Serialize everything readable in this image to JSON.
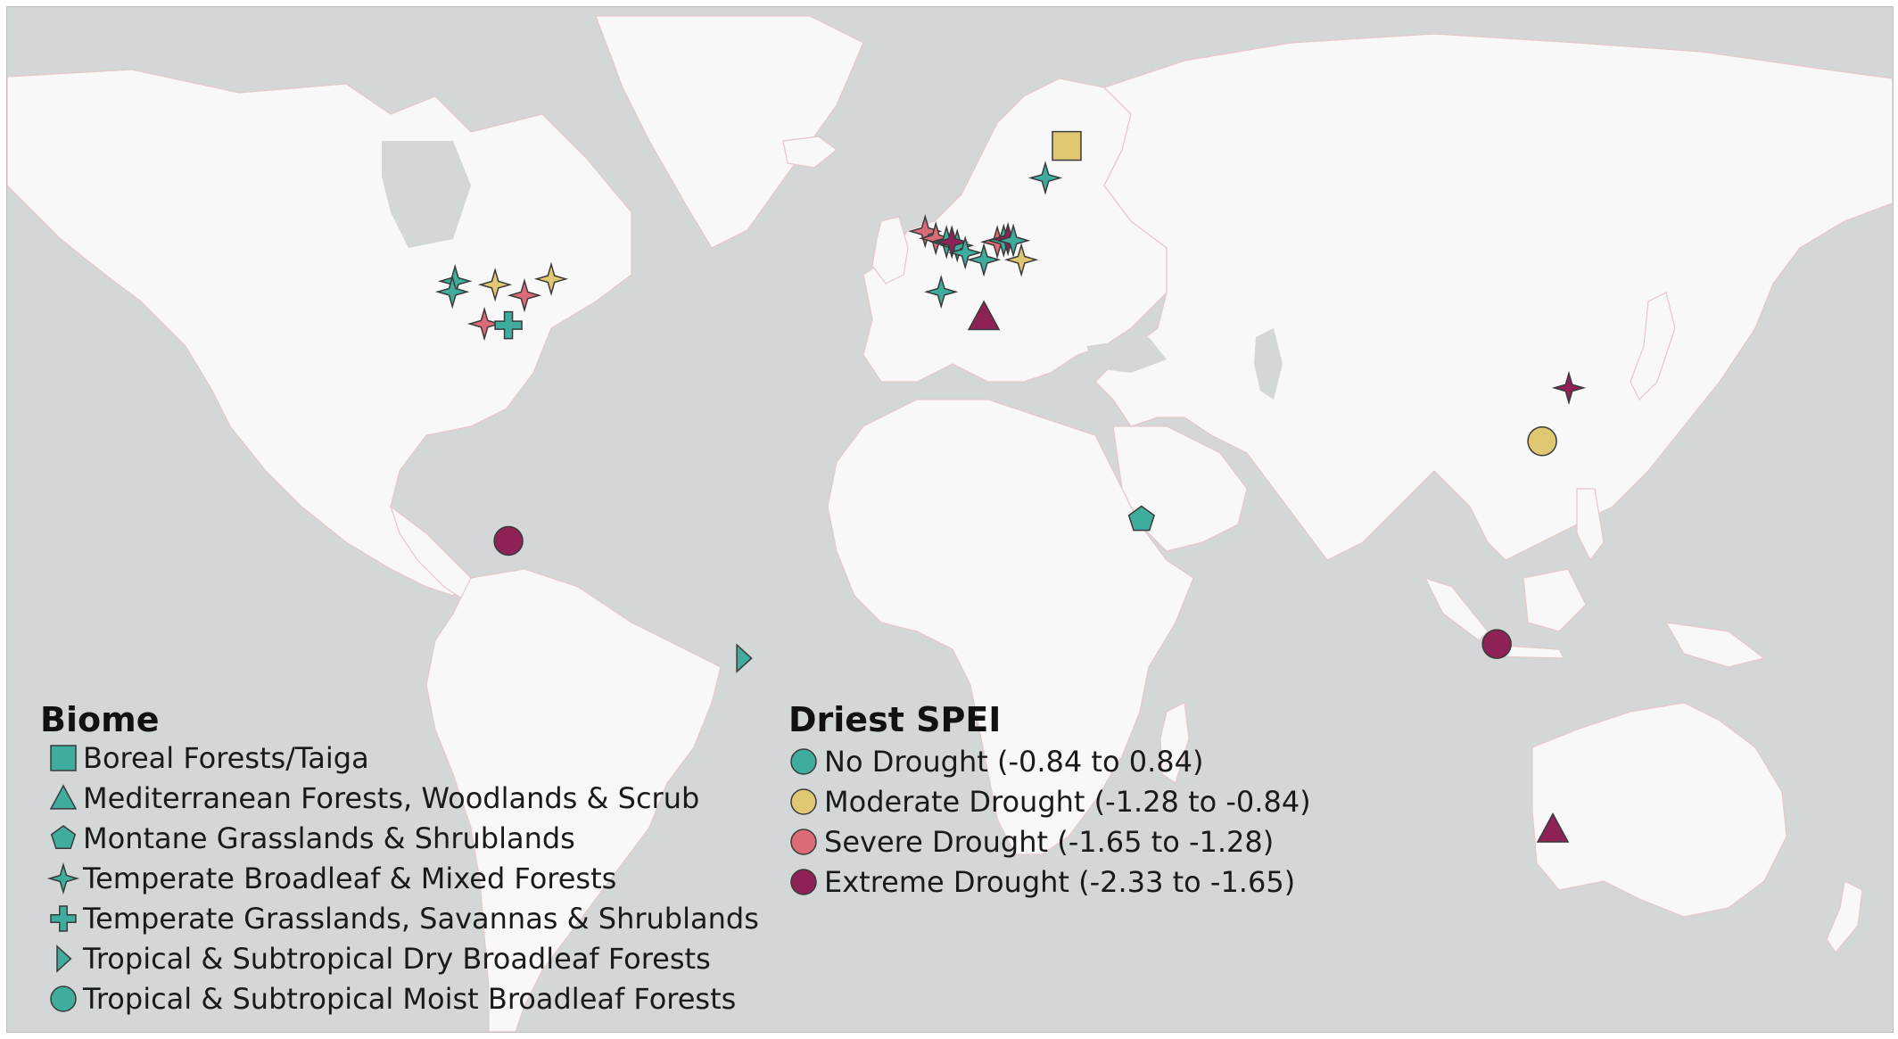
{
  "colors": {
    "ocean": "#d3d7d8",
    "land": "#f8f8f8",
    "no_drought": "#3fad9d",
    "moderate_drought": "#e0c873",
    "severe_drought": "#db6b78",
    "extreme_drought": "#8e2257"
  },
  "biome_legend": {
    "title": "Biome",
    "items": [
      {
        "shape": "square",
        "label": "Boreal Forests/Taiga"
      },
      {
        "shape": "triangle",
        "label": "Mediterranean Forests, Woodlands & Scrub"
      },
      {
        "shape": "pentagon",
        "label": "Montane Grasslands & Shrublands"
      },
      {
        "shape": "star",
        "label": "Temperate Broadleaf & Mixed Forests"
      },
      {
        "shape": "cross",
        "label": "Temperate Grasslands, Savannas & Shrublands"
      },
      {
        "shape": "half-triangle",
        "label": "Tropical & Subtropical Dry Broadleaf Forests"
      },
      {
        "shape": "circle",
        "label": "Tropical & Subtropical Moist Broadleaf Forests"
      }
    ]
  },
  "spei_legend": {
    "title": "Driest SPEI",
    "items": [
      {
        "category": "no_drought",
        "label": "No Drought (-0.84 to 0.84)"
      },
      {
        "category": "moderate_drought",
        "label": "Moderate Drought (-1.28 to -0.84)"
      },
      {
        "category": "severe_drought",
        "label": "Severe Drought (-1.65 to -1.28)"
      },
      {
        "category": "extreme_drought",
        "label": "Extreme Drought (-2.33 to -1.65)"
      }
    ]
  },
  "sites": [
    {
      "lon": 25.0,
      "lat": 64.5,
      "biome": "square",
      "spei": "moderate_drought"
    },
    {
      "lon": 21.0,
      "lat": 60.0,
      "biome": "star",
      "spei": "no_drought"
    },
    {
      "lon": -89.5,
      "lat": 45.5,
      "biome": "star",
      "spei": "no_drought"
    },
    {
      "lon": -90.0,
      "lat": 44.0,
      "biome": "star",
      "spei": "no_drought"
    },
    {
      "lon": -82.0,
      "lat": 45.0,
      "biome": "star",
      "spei": "moderate_drought"
    },
    {
      "lon": -71.5,
      "lat": 45.8,
      "biome": "star",
      "spei": "moderate_drought"
    },
    {
      "lon": -76.5,
      "lat": 43.5,
      "biome": "star",
      "spei": "severe_drought"
    },
    {
      "lon": -84.0,
      "lat": 39.5,
      "biome": "star",
      "spei": "severe_drought"
    },
    {
      "lon": -79.5,
      "lat": 39.3,
      "biome": "cross",
      "spei": "no_drought"
    },
    {
      "lon": -1.5,
      "lat": 52.5,
      "biome": "star",
      "spei": "severe_drought"
    },
    {
      "lon": 0.5,
      "lat": 51.5,
      "biome": "star",
      "spei": "severe_drought"
    },
    {
      "lon": 2.5,
      "lat": 51.0,
      "biome": "star",
      "spei": "no_drought"
    },
    {
      "lon": 4.5,
      "lat": 50.5,
      "biome": "star",
      "spei": "no_drought"
    },
    {
      "lon": 3.5,
      "lat": 51.0,
      "biome": "star",
      "spei": "extreme_drought"
    },
    {
      "lon": 6.0,
      "lat": 49.5,
      "biome": "star",
      "spei": "no_drought"
    },
    {
      "lon": 9.5,
      "lat": 48.5,
      "biome": "star",
      "spei": "no_drought"
    },
    {
      "lon": 12.0,
      "lat": 51.0,
      "biome": "star",
      "spei": "severe_drought"
    },
    {
      "lon": 13.2,
      "lat": 51.2,
      "biome": "star",
      "spei": "no_drought"
    },
    {
      "lon": 14.0,
      "lat": 51.4,
      "biome": "star",
      "spei": "extreme_drought"
    },
    {
      "lon": 15.0,
      "lat": 51.2,
      "biome": "star",
      "spei": "no_drought"
    },
    {
      "lon": 16.5,
      "lat": 48.5,
      "biome": "star",
      "spei": "moderate_drought"
    },
    {
      "lon": 1.5,
      "lat": 44.0,
      "biome": "star",
      "spei": "no_drought"
    },
    {
      "lon": 9.5,
      "lat": 40.5,
      "biome": "triangle",
      "spei": "extreme_drought"
    },
    {
      "lon": 39.0,
      "lat": 12.0,
      "biome": "pentagon",
      "spei": "no_drought"
    },
    {
      "lon": 119.0,
      "lat": 30.5,
      "biome": "star",
      "spei": "extreme_drought"
    },
    {
      "lon": 114.0,
      "lat": 23.0,
      "biome": "circle",
      "spei": "moderate_drought"
    },
    {
      "lon": 105.5,
      "lat": -5.5,
      "biome": "circle",
      "spei": "extreme_drought"
    },
    {
      "lon": 116.0,
      "lat": -31.5,
      "biome": "triangle",
      "spei": "extreme_drought"
    },
    {
      "lon": -79.5,
      "lat": 9.0,
      "biome": "circle",
      "spei": "extreme_drought"
    },
    {
      "lon": -35.5,
      "lat": -7.5,
      "biome": "half-triangle",
      "spei": "no_drought"
    }
  ]
}
